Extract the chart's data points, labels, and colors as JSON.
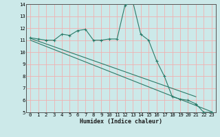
{
  "xlabel": "Humidex (Indice chaleur)",
  "xlim": [
    -0.5,
    23.5
  ],
  "ylim": [
    5,
    14
  ],
  "yticks": [
    5,
    6,
    7,
    8,
    9,
    10,
    11,
    12,
    13,
    14
  ],
  "xticks": [
    0,
    1,
    2,
    3,
    4,
    5,
    6,
    7,
    8,
    9,
    10,
    11,
    12,
    13,
    14,
    15,
    16,
    17,
    18,
    19,
    20,
    21,
    22,
    23
  ],
  "line_color": "#2a7a68",
  "bg_color": "#cce9e9",
  "grid_color": "#f0b0b0",
  "humidex_x": [
    0,
    1,
    2,
    3,
    4,
    5,
    6,
    7,
    8,
    9,
    10,
    11,
    12,
    13,
    14,
    15,
    16,
    17,
    18,
    19,
    20,
    21,
    22,
    23
  ],
  "humidex_y": [
    11.2,
    11.1,
    11.0,
    11.0,
    11.5,
    11.4,
    11.8,
    11.9,
    11.0,
    11.0,
    11.1,
    11.1,
    13.9,
    14.2,
    11.5,
    11.0,
    9.3,
    8.0,
    6.3,
    6.1,
    6.0,
    5.7,
    5.0,
    5.0
  ],
  "trend1_x": [
    0,
    21
  ],
  "trend1_y": [
    11.15,
    6.3
  ],
  "trend2_x": [
    0,
    23
  ],
  "trend2_y": [
    11.0,
    5.05
  ],
  "xlabel_fontsize": 6.0,
  "tick_fontsize": 5.2
}
